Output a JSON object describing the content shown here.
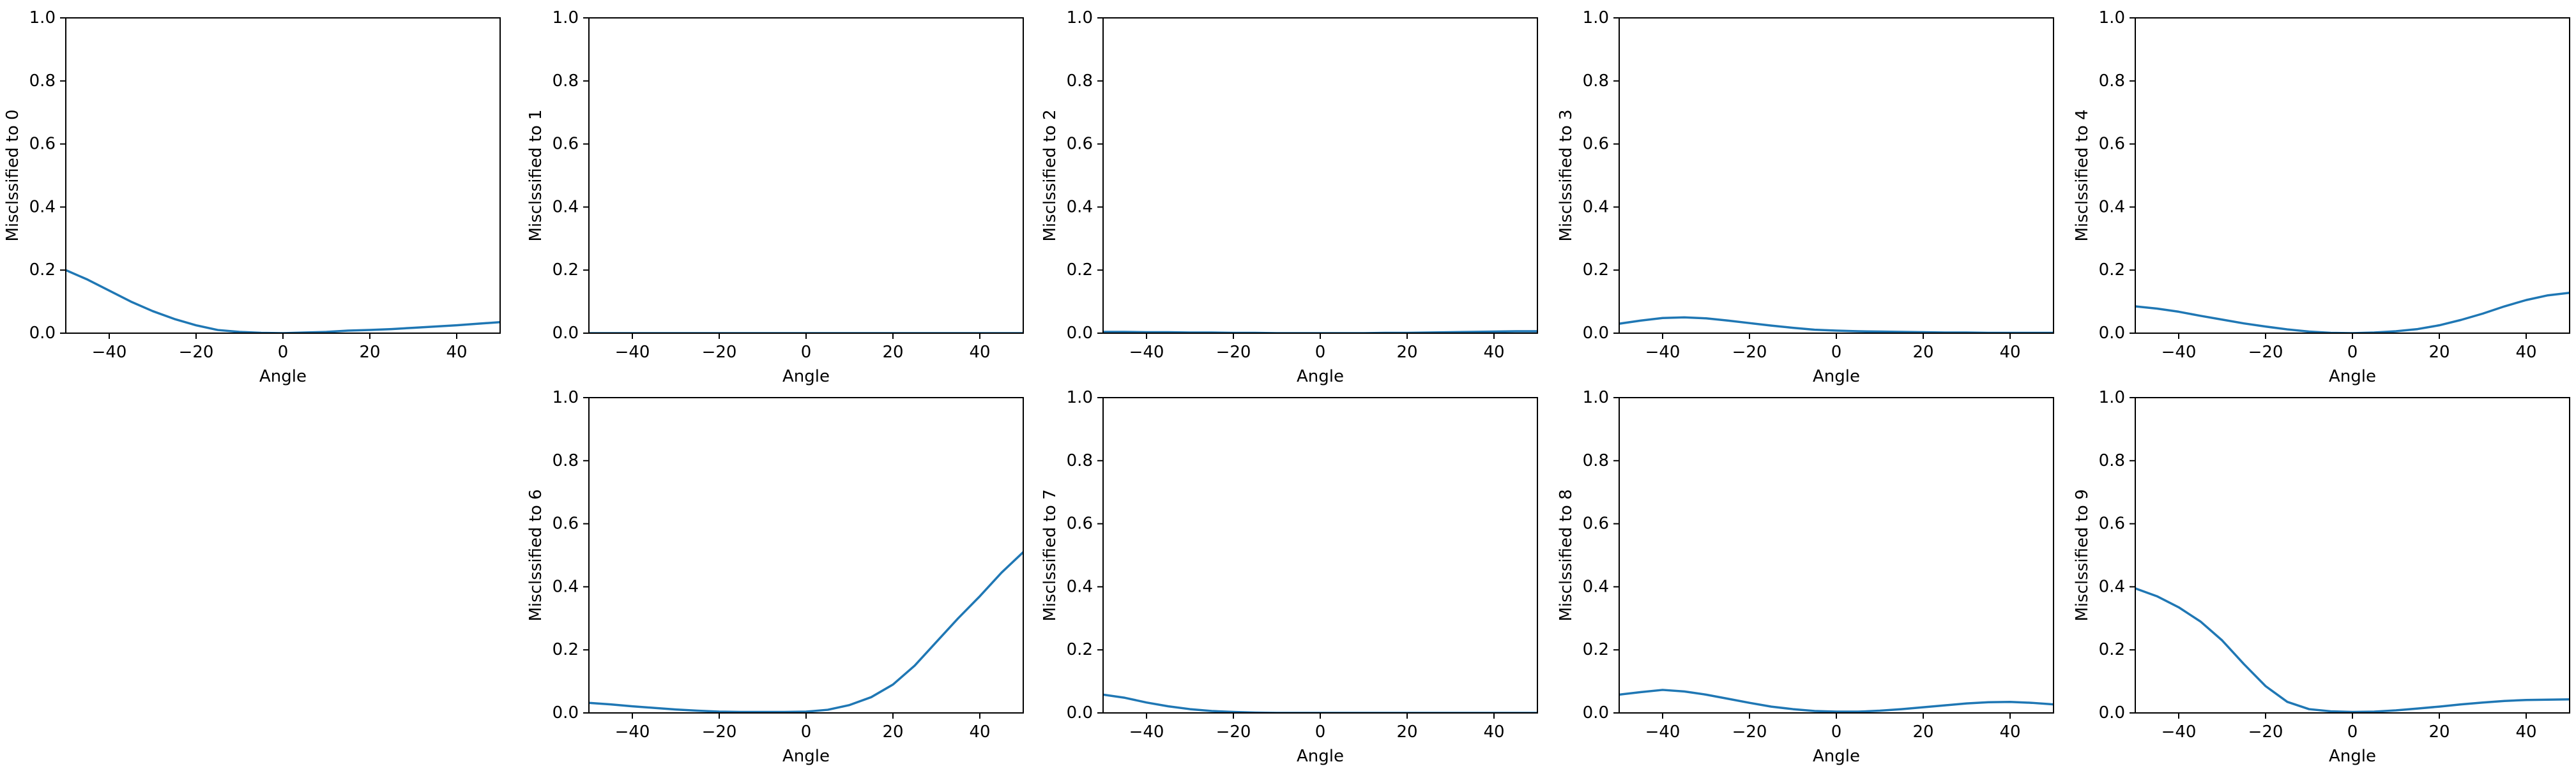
{
  "chart_data": [
    {
      "type": "line",
      "ylabel": "Misclssified to 0",
      "xlabel": "Angle",
      "xlim": [
        -50,
        50
      ],
      "ylim": [
        0,
        1
      ],
      "xticks": [
        -40,
        -20,
        0,
        20,
        40
      ],
      "yticks": [
        0.0,
        0.2,
        0.4,
        0.6,
        0.8,
        1.0
      ],
      "grid": false,
      "x": [
        -50,
        -45,
        -40,
        -35,
        -30,
        -25,
        -20,
        -15,
        -10,
        -5,
        0,
        5,
        10,
        15,
        20,
        25,
        30,
        35,
        40,
        45,
        50
      ],
      "series": [
        {
          "values": [
            0.2,
            0.17,
            0.135,
            0.1,
            0.07,
            0.045,
            0.025,
            0.01,
            0.004,
            0.001,
            0.0,
            0.002,
            0.004,
            0.008,
            0.01,
            0.013,
            0.017,
            0.021,
            0.025,
            0.03,
            0.035
          ]
        }
      ]
    },
    {
      "type": "line",
      "ylabel": "Misclssified to 1",
      "xlabel": "Angle",
      "xlim": [
        -50,
        50
      ],
      "ylim": [
        0,
        1
      ],
      "xticks": [
        -40,
        -20,
        0,
        20,
        40
      ],
      "yticks": [
        0.0,
        0.2,
        0.4,
        0.6,
        0.8,
        1.0
      ],
      "grid": false,
      "x": [
        -50,
        -45,
        -40,
        -35,
        -30,
        -25,
        -20,
        -15,
        -10,
        -5,
        0,
        5,
        10,
        15,
        20,
        25,
        30,
        35,
        40,
        45,
        50
      ],
      "series": [
        {
          "values": [
            0.0,
            0.0,
            0.0,
            0.0,
            0.0,
            0.0,
            0.0,
            0.0,
            0.0,
            0.0,
            0.0,
            0.0,
            0.0,
            0.0,
            0.0,
            0.0,
            0.0,
            0.0,
            0.0,
            0.0,
            0.0
          ]
        }
      ]
    },
    {
      "type": "line",
      "ylabel": "Misclssified to 2",
      "xlabel": "Angle",
      "xlim": [
        -50,
        50
      ],
      "ylim": [
        0,
        1
      ],
      "xticks": [
        -40,
        -20,
        0,
        20,
        40
      ],
      "yticks": [
        0.0,
        0.2,
        0.4,
        0.6,
        0.8,
        1.0
      ],
      "grid": false,
      "x": [
        -50,
        -45,
        -40,
        -35,
        -30,
        -25,
        -20,
        -15,
        -10,
        -5,
        0,
        5,
        10,
        15,
        20,
        25,
        30,
        35,
        40,
        45,
        50
      ],
      "series": [
        {
          "values": [
            0.004,
            0.004,
            0.003,
            0.003,
            0.002,
            0.002,
            0.001,
            0.001,
            0.0,
            0.0,
            0.0,
            0.0,
            0.0,
            0.001,
            0.001,
            0.002,
            0.003,
            0.004,
            0.005,
            0.006,
            0.006
          ]
        }
      ]
    },
    {
      "type": "line",
      "ylabel": "Misclssified to 3",
      "xlabel": "Angle",
      "xlim": [
        -50,
        50
      ],
      "ylim": [
        0,
        1
      ],
      "xticks": [
        -40,
        -20,
        0,
        20,
        40
      ],
      "yticks": [
        0.0,
        0.2,
        0.4,
        0.6,
        0.8,
        1.0
      ],
      "grid": false,
      "x": [
        -50,
        -45,
        -40,
        -35,
        -30,
        -25,
        -20,
        -15,
        -10,
        -5,
        0,
        5,
        10,
        15,
        20,
        25,
        30,
        35,
        40,
        45,
        50
      ],
      "series": [
        {
          "values": [
            0.03,
            0.04,
            0.048,
            0.05,
            0.047,
            0.04,
            0.032,
            0.024,
            0.017,
            0.011,
            0.008,
            0.006,
            0.005,
            0.004,
            0.003,
            0.002,
            0.002,
            0.001,
            0.001,
            0.001,
            0.001
          ]
        }
      ]
    },
    {
      "type": "line",
      "ylabel": "Misclssified to 4",
      "xlabel": "Angle",
      "xlim": [
        -50,
        50
      ],
      "ylim": [
        0,
        1
      ],
      "xticks": [
        -40,
        -20,
        0,
        20,
        40
      ],
      "yticks": [
        0.0,
        0.2,
        0.4,
        0.6,
        0.8,
        1.0
      ],
      "grid": false,
      "x": [
        -50,
        -45,
        -40,
        -35,
        -30,
        -25,
        -20,
        -15,
        -10,
        -5,
        0,
        5,
        10,
        15,
        20,
        25,
        30,
        35,
        40,
        45,
        50
      ],
      "series": [
        {
          "values": [
            0.085,
            0.078,
            0.068,
            0.055,
            0.043,
            0.031,
            0.021,
            0.012,
            0.005,
            0.001,
            0.0,
            0.002,
            0.006,
            0.013,
            0.025,
            0.042,
            0.062,
            0.085,
            0.105,
            0.12,
            0.128
          ]
        }
      ]
    },
    {
      "type": "line",
      "ylabel": "Misclssified to 6",
      "xlabel": "Angle",
      "xlim": [
        -50,
        50
      ],
      "ylim": [
        0,
        1
      ],
      "xticks": [
        -40,
        -20,
        0,
        20,
        40
      ],
      "yticks": [
        0.0,
        0.2,
        0.4,
        0.6,
        0.8,
        1.0
      ],
      "grid": false,
      "x": [
        -50,
        -45,
        -40,
        -35,
        -30,
        -25,
        -20,
        -15,
        -10,
        -5,
        0,
        5,
        10,
        15,
        20,
        25,
        30,
        35,
        40,
        45,
        50
      ],
      "series": [
        {
          "values": [
            0.032,
            0.027,
            0.021,
            0.016,
            0.011,
            0.007,
            0.004,
            0.003,
            0.003,
            0.003,
            0.004,
            0.01,
            0.025,
            0.05,
            0.09,
            0.15,
            0.225,
            0.3,
            0.37,
            0.445,
            0.51
          ]
        }
      ]
    },
    {
      "type": "line",
      "ylabel": "Misclssified to 7",
      "xlabel": "Angle",
      "xlim": [
        -50,
        50
      ],
      "ylim": [
        0,
        1
      ],
      "xticks": [
        -40,
        -20,
        0,
        20,
        40
      ],
      "yticks": [
        0.0,
        0.2,
        0.4,
        0.6,
        0.8,
        1.0
      ],
      "grid": false,
      "x": [
        -50,
        -45,
        -40,
        -35,
        -30,
        -25,
        -20,
        -15,
        -10,
        -5,
        0,
        5,
        10,
        15,
        20,
        25,
        30,
        35,
        40,
        45,
        50
      ],
      "series": [
        {
          "values": [
            0.058,
            0.048,
            0.033,
            0.021,
            0.012,
            0.006,
            0.003,
            0.001,
            0.0,
            0.0,
            0.0,
            0.0,
            0.0,
            0.0,
            0.0,
            0.0,
            0.0,
            0.0,
            0.0,
            0.0,
            0.0
          ]
        }
      ]
    },
    {
      "type": "line",
      "ylabel": "Misclssified to 8",
      "xlabel": "Angle",
      "xlim": [
        -50,
        50
      ],
      "ylim": [
        0,
        1
      ],
      "xticks": [
        -40,
        -20,
        0,
        20,
        40
      ],
      "yticks": [
        0.0,
        0.2,
        0.4,
        0.6,
        0.8,
        1.0
      ],
      "grid": false,
      "x": [
        -50,
        -45,
        -40,
        -35,
        -30,
        -25,
        -20,
        -15,
        -10,
        -5,
        0,
        5,
        10,
        15,
        20,
        25,
        30,
        35,
        40,
        45,
        50
      ],
      "series": [
        {
          "values": [
            0.058,
            0.066,
            0.073,
            0.068,
            0.058,
            0.045,
            0.032,
            0.02,
            0.012,
            0.006,
            0.004,
            0.004,
            0.007,
            0.012,
            0.018,
            0.024,
            0.03,
            0.034,
            0.035,
            0.032,
            0.027
          ]
        }
      ]
    },
    {
      "type": "line",
      "ylabel": "Misclssified to 9",
      "xlabel": "Angle",
      "xlim": [
        -50,
        50
      ],
      "ylim": [
        0,
        1
      ],
      "xticks": [
        -40,
        -20,
        0,
        20,
        40
      ],
      "yticks": [
        0.0,
        0.2,
        0.4,
        0.6,
        0.8,
        1.0
      ],
      "grid": false,
      "x": [
        -50,
        -45,
        -40,
        -35,
        -30,
        -25,
        -20,
        -15,
        -10,
        -5,
        0,
        5,
        10,
        15,
        20,
        25,
        30,
        35,
        40,
        45,
        50
      ],
      "series": [
        {
          "values": [
            0.395,
            0.37,
            0.335,
            0.29,
            0.23,
            0.155,
            0.085,
            0.035,
            0.012,
            0.005,
            0.003,
            0.004,
            0.008,
            0.014,
            0.02,
            0.027,
            0.033,
            0.038,
            0.041,
            0.042,
            0.043
          ]
        }
      ]
    }
  ],
  "style": {
    "line_color": "#1f77b4",
    "axis_color": "#000000"
  }
}
